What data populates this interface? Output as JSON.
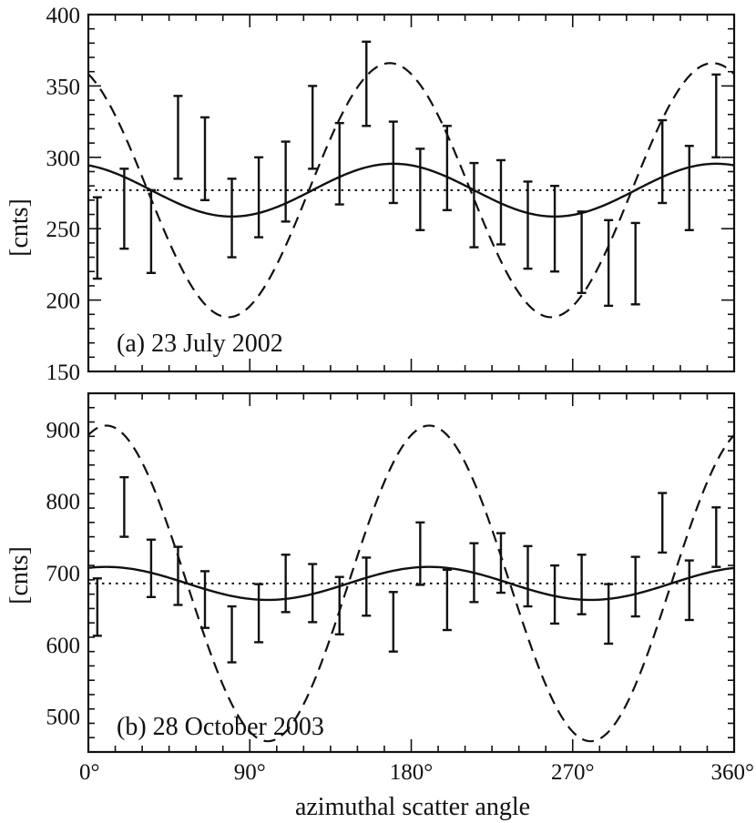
{
  "chart_data": [
    {
      "type": "line",
      "panel_label": "(a) 23 July 2002",
      "xlabel": "",
      "ylabel": "[cnts]",
      "xlim": [
        0,
        360
      ],
      "ylim": [
        150,
        400
      ],
      "yticks": [
        150,
        200,
        250,
        300,
        350,
        400
      ],
      "ytick_labels": [
        "150",
        "200",
        "250",
        "300",
        "350",
        "400"
      ],
      "xticks": [
        0,
        90,
        180,
        270,
        360
      ],
      "xtick_labels": [],
      "grid": false,
      "error_bars": [
        {
          "x": 5,
          "low": 215,
          "high": 272
        },
        {
          "x": 20,
          "low": 236,
          "high": 292
        },
        {
          "x": 35,
          "low": 219,
          "high": 277
        },
        {
          "x": 50,
          "low": 285,
          "high": 343
        },
        {
          "x": 65,
          "low": 270,
          "high": 328
        },
        {
          "x": 80,
          "low": 230,
          "high": 285
        },
        {
          "x": 95,
          "low": 244,
          "high": 300
        },
        {
          "x": 110,
          "low": 255,
          "high": 311
        },
        {
          "x": 125,
          "low": 292,
          "high": 350
        },
        {
          "x": 140,
          "low": 267,
          "high": 324
        },
        {
          "x": 155,
          "low": 322,
          "high": 381
        },
        {
          "x": 170,
          "low": 268,
          "high": 325
        },
        {
          "x": 185,
          "low": 249,
          "high": 306
        },
        {
          "x": 200,
          "low": 263,
          "high": 322
        },
        {
          "x": 215,
          "low": 237,
          "high": 296
        },
        {
          "x": 230,
          "low": 239,
          "high": 298
        },
        {
          "x": 245,
          "low": 222,
          "high": 283
        },
        {
          "x": 260,
          "low": 220,
          "high": 280
        },
        {
          "x": 275,
          "low": 205,
          "high": 262
        },
        {
          "x": 290,
          "low": 196,
          "high": 256
        },
        {
          "x": 305,
          "low": 197,
          "high": 254
        },
        {
          "x": 320,
          "low": 268,
          "high": 326
        },
        {
          "x": 335,
          "low": 249,
          "high": 308
        },
        {
          "x": 350,
          "low": 300,
          "high": 358
        }
      ],
      "series": [
        {
          "style": "solid",
          "mean": 277,
          "amplitude": 18.5,
          "phase_deg": 170
        },
        {
          "style": "dashed",
          "mean": 277,
          "amplitude": 89,
          "phase_deg": 168
        },
        {
          "style": "dotted",
          "mean": 277,
          "amplitude": 0,
          "phase_deg": 0
        }
      ]
    },
    {
      "type": "line",
      "panel_label": "(b) 28 October 2003",
      "xlabel": "azimuthal scatter angle",
      "ylabel": "[cnts]",
      "xlim": [
        0,
        360
      ],
      "ylim": [
        450,
        950
      ],
      "yticks": [
        500,
        600,
        700,
        800,
        900
      ],
      "ytick_labels": [
        "500",
        "600",
        "700",
        "800",
        "900"
      ],
      "xticks": [
        0,
        90,
        180,
        270,
        360
      ],
      "xtick_labels": [
        "0°",
        "90°",
        "180°",
        "270°",
        "360°"
      ],
      "grid": false,
      "error_bars": [
        {
          "x": 5,
          "low": 612,
          "high": 692
        },
        {
          "x": 20,
          "low": 750,
          "high": 833
        },
        {
          "x": 35,
          "low": 666,
          "high": 746
        },
        {
          "x": 50,
          "low": 655,
          "high": 736
        },
        {
          "x": 65,
          "low": 623,
          "high": 702
        },
        {
          "x": 80,
          "low": 575,
          "high": 653
        },
        {
          "x": 95,
          "low": 603,
          "high": 684
        },
        {
          "x": 110,
          "low": 645,
          "high": 725
        },
        {
          "x": 125,
          "low": 631,
          "high": 712
        },
        {
          "x": 140,
          "low": 614,
          "high": 694
        },
        {
          "x": 155,
          "low": 640,
          "high": 721
        },
        {
          "x": 170,
          "low": 590,
          "high": 673
        },
        {
          "x": 185,
          "low": 683,
          "high": 770
        },
        {
          "x": 200,
          "low": 620,
          "high": 704
        },
        {
          "x": 215,
          "low": 659,
          "high": 741
        },
        {
          "x": 230,
          "low": 672,
          "high": 755
        },
        {
          "x": 245,
          "low": 653,
          "high": 737
        },
        {
          "x": 260,
          "low": 629,
          "high": 710
        },
        {
          "x": 275,
          "low": 642,
          "high": 725
        },
        {
          "x": 290,
          "low": 601,
          "high": 684
        },
        {
          "x": 305,
          "low": 639,
          "high": 722
        },
        {
          "x": 320,
          "low": 728,
          "high": 811
        },
        {
          "x": 335,
          "low": 634,
          "high": 717
        },
        {
          "x": 350,
          "low": 708,
          "high": 791
        }
      ],
      "series": [
        {
          "style": "solid",
          "mean": 685,
          "amplitude": 23,
          "phase_deg": 190
        },
        {
          "style": "dashed",
          "mean": 685,
          "amplitude": 220,
          "phase_deg": 190
        },
        {
          "style": "dotted",
          "mean": 685,
          "amplitude": 0,
          "phase_deg": 0
        }
      ]
    }
  ]
}
